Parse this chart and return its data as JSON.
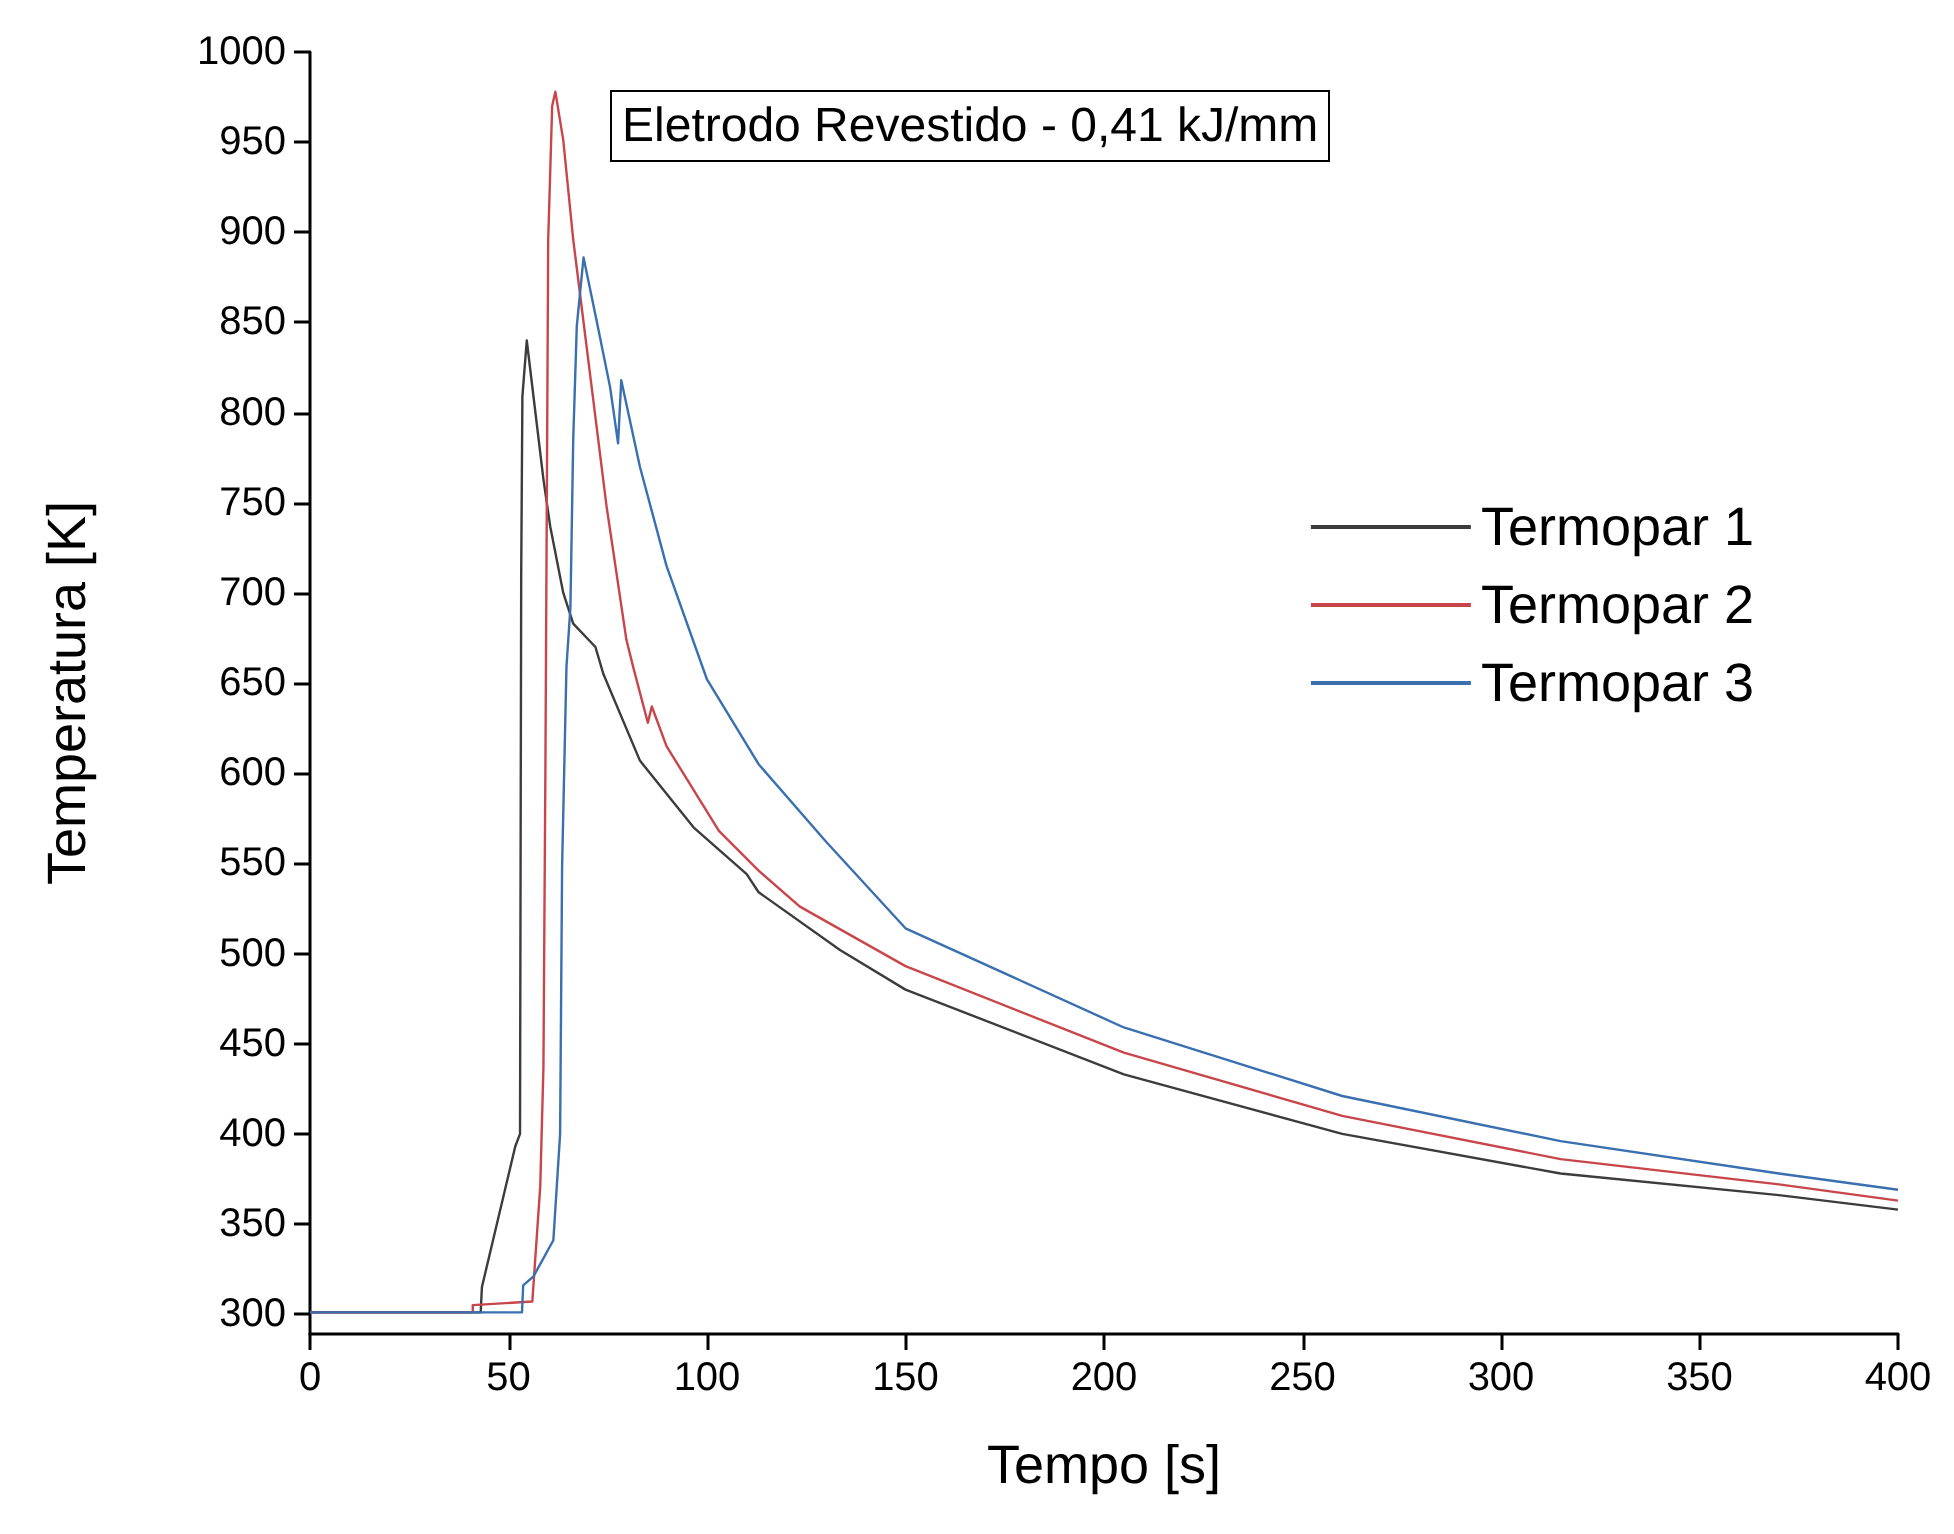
{
  "chart_data": {
    "type": "line",
    "title": "Eletrodo Revestido - 0,41 kJ/mm",
    "xlabel": "Tempo [s]",
    "ylabel": "Temperatura [K]",
    "xlim": [
      0,
      400
    ],
    "xticks": [
      0,
      50,
      100,
      150,
      200,
      250,
      300,
      350,
      400
    ],
    "ylim": [
      289,
      1000
    ],
    "yticks": [
      300,
      350,
      400,
      450,
      500,
      550,
      600,
      650,
      700,
      750,
      800,
      850,
      900,
      950,
      1000
    ],
    "grid": false,
    "legend": "right",
    "marker": "none",
    "line_style": "solid",
    "series": [
      {
        "name": "Termopar 1",
        "color": "#3c3c3c",
        "x": [
          0,
          43,
          43.3,
          51.7,
          52.9,
          53.2,
          53.5,
          54.6,
          58.8,
          60.5,
          63.8,
          66.3,
          71.9,
          73.9,
          83.1,
          96.6,
          110,
          113,
          133.5,
          150,
          205,
          260,
          315,
          370,
          400
        ],
        "values": [
          301,
          301,
          315,
          393,
          400,
          711,
          809,
          840,
          763,
          737,
          700,
          683,
          670,
          655,
          607,
          570,
          544,
          534,
          502,
          480,
          433,
          400,
          378,
          366,
          358
        ]
      },
      {
        "name": "Termopar 2",
        "color": "#c8464a",
        "x": [
          0,
          41,
          41,
          56,
          58,
          58.8,
          59.3,
          60,
          61,
          61.8,
          63.8,
          66.3,
          70.5,
          74.7,
          79.7,
          81.4,
          85.1,
          86.1,
          89.8,
          103,
          113,
          123.4,
          150,
          205,
          260,
          315,
          370,
          400
        ],
        "values": [
          301,
          301,
          305,
          307,
          371,
          437,
          604,
          896,
          970,
          978,
          951,
          896,
          822,
          748,
          674,
          659,
          628,
          637,
          615,
          568,
          546,
          526,
          493,
          445,
          410,
          386,
          372,
          363
        ]
      },
      {
        "name": "Termopar 3",
        "color": "#3a6fb0",
        "x": [
          0,
          53.4,
          53.7,
          56.3,
          61.3,
          63,
          63.5,
          64.6,
          65.6,
          66.3,
          67.2,
          68.9,
          72.2,
          75.6,
          77.6,
          78.4,
          83.1,
          89.8,
          100,
          113,
          130,
          150,
          205,
          260,
          315,
          370,
          400
        ],
        "values": [
          301,
          301,
          316,
          321,
          341,
          400,
          548,
          659,
          692,
          785,
          848,
          886,
          851,
          814,
          783,
          818,
          770,
          715,
          652,
          605,
          562,
          514,
          459,
          421,
          396,
          378,
          369
        ]
      }
    ]
  }
}
